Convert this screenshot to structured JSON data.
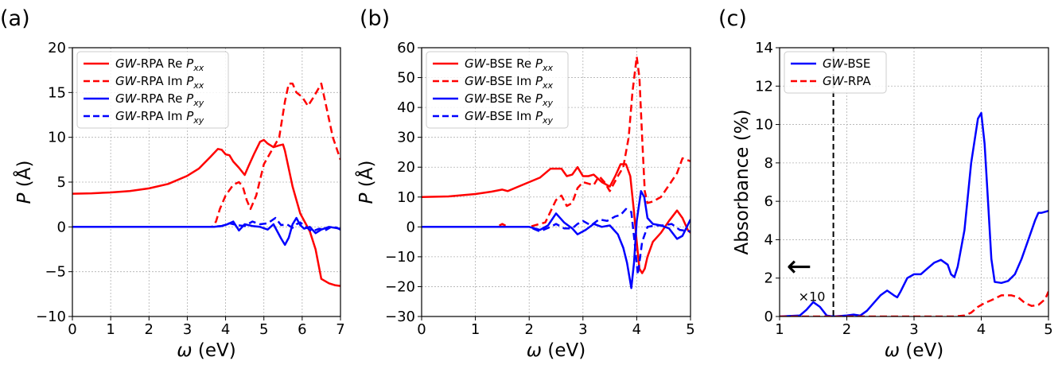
{
  "chart_data": [
    {
      "type": "line",
      "panel_label": "(a)",
      "xlabel": "ω (eV)",
      "ylabel": "P (Å)",
      "xlim": [
        0,
        7
      ],
      "ylim": [
        -10,
        20
      ],
      "xticks": [
        0,
        1,
        2,
        3,
        4,
        5,
        6,
        7
      ],
      "yticks": [
        -10,
        -5,
        0,
        5,
        10,
        15,
        20
      ],
      "grid": true,
      "legend_position": "top-left",
      "series": [
        {
          "name": "GW-RPA Re Pxx",
          "color": "#ff0000",
          "dash": "solid",
          "x": [
            0,
            0.5,
            1,
            1.5,
            2,
            2.5,
            3,
            3.3,
            3.6,
            3.8,
            3.9,
            4.0,
            4.1,
            4.2,
            4.35,
            4.5,
            4.6,
            4.75,
            4.9,
            5.0,
            5.1,
            5.25,
            5.4,
            5.5,
            5.55,
            5.65,
            5.75,
            5.85,
            5.95,
            6.1,
            6.2,
            6.35,
            6.5,
            6.7,
            6.85,
            7.0
          ],
          "y": [
            3.7,
            3.75,
            3.85,
            4.0,
            4.3,
            4.8,
            5.7,
            6.5,
            7.8,
            8.7,
            8.6,
            8.1,
            8.0,
            7.3,
            6.6,
            5.8,
            6.8,
            8.2,
            9.5,
            9.7,
            9.3,
            8.9,
            9.1,
            9.2,
            8.5,
            6.5,
            4.5,
            3.0,
            1.5,
            0.3,
            -0.5,
            -2.5,
            -5.8,
            -6.3,
            -6.5,
            -6.6
          ]
        },
        {
          "name": "GW-RPA Im Pxx",
          "color": "#ff0000",
          "dash": "dashed",
          "x": [
            0,
            3.0,
            3.65,
            3.75,
            3.85,
            4.0,
            4.2,
            4.35,
            4.45,
            4.55,
            4.65,
            4.8,
            5.0,
            5.2,
            5.4,
            5.55,
            5.65,
            5.75,
            5.85,
            6.0,
            6.15,
            6.3,
            6.5,
            6.65,
            6.8,
            7.0
          ],
          "y": [
            0,
            0,
            0,
            0.6,
            2.0,
            3.5,
            4.7,
            5.0,
            4.5,
            3.0,
            2.0,
            3.5,
            7.0,
            8.5,
            10.0,
            14.0,
            16.0,
            16.0,
            15.0,
            14.5,
            13.5,
            14.5,
            16.0,
            13.0,
            10.0,
            7.5
          ]
        },
        {
          "name": "GW-RPA Re Pxy",
          "color": "#0000ff",
          "dash": "solid",
          "x": [
            0,
            3.7,
            3.9,
            4.05,
            4.2,
            4.35,
            4.5,
            4.7,
            4.9,
            5.1,
            5.25,
            5.45,
            5.55,
            5.65,
            5.75,
            5.85,
            5.95,
            6.05,
            6.2,
            6.35,
            6.5,
            6.7,
            7.0
          ],
          "y": [
            0,
            0,
            0.1,
            0.3,
            0.6,
            -0.4,
            0.3,
            0.1,
            0,
            -0.3,
            0.3,
            -1.3,
            -2.0,
            -1.2,
            0.3,
            1.0,
            0.2,
            -0.2,
            0.0,
            -0.7,
            -0.3,
            0.0,
            -0.2
          ]
        },
        {
          "name": "GW-RPA Im Pxy",
          "color": "#0000ff",
          "dash": "dashed",
          "x": [
            0,
            3.6,
            3.9,
            4.1,
            4.3,
            4.5,
            4.7,
            4.9,
            5.1,
            5.3,
            5.45,
            5.6,
            5.75,
            5.85,
            5.95,
            6.1,
            6.25,
            6.45,
            6.6,
            6.8,
            7.0
          ],
          "y": [
            0,
            0,
            0.1,
            0.4,
            0.2,
            0.1,
            0.6,
            0.3,
            0.4,
            1.0,
            0.2,
            0.3,
            -0.1,
            0.3,
            0.5,
            0,
            -0.5,
            -0.2,
            -0.4,
            0.1,
            -0.3
          ]
        }
      ]
    },
    {
      "type": "line",
      "panel_label": "(b)",
      "xlabel": "ω (eV)",
      "ylabel": "P (Å)",
      "xlim": [
        0,
        5
      ],
      "ylim": [
        -30,
        60
      ],
      "xticks": [
        0,
        1,
        2,
        3,
        4,
        5
      ],
      "yticks": [
        -30,
        -20,
        -10,
        0,
        10,
        20,
        30,
        40,
        50,
        60
      ],
      "grid": true,
      "legend_position": "top-left",
      "series": [
        {
          "name": "GW-BSE Re Pxx",
          "color": "#ff0000",
          "dash": "solid",
          "x": [
            0,
            0.5,
            1.0,
            1.3,
            1.5,
            1.6,
            1.8,
            2.0,
            2.2,
            2.4,
            2.5,
            2.6,
            2.7,
            2.8,
            2.9,
            3.0,
            3.1,
            3.2,
            3.35,
            3.5,
            3.6,
            3.7,
            3.8,
            3.88,
            3.95,
            4.0,
            4.05,
            4.1,
            4.15,
            4.2,
            4.3,
            4.45,
            4.6,
            4.75,
            4.85,
            4.95,
            5.0
          ],
          "y": [
            10.0,
            10.2,
            11.0,
            11.8,
            12.5,
            12.0,
            13.5,
            15.0,
            16.5,
            19.5,
            19.5,
            19.5,
            17.0,
            17.5,
            20.0,
            17.0,
            17.0,
            17.5,
            15.0,
            13.5,
            17.0,
            21.0,
            21.0,
            17.0,
            5.0,
            -5.0,
            -14.0,
            -15.5,
            -14.0,
            -10.0,
            -5.0,
            -2.0,
            2.0,
            5.5,
            3.0,
            -1.0,
            -2.0
          ]
        },
        {
          "name": "GW-BSE Im Pxx",
          "color": "#ff0000",
          "dash": "dashed",
          "x": [
            0,
            1.4,
            1.5,
            1.6,
            2.0,
            2.3,
            2.5,
            2.6,
            2.7,
            2.8,
            2.9,
            3.0,
            3.2,
            3.3,
            3.4,
            3.5,
            3.65,
            3.75,
            3.85,
            3.92,
            4.0,
            4.05,
            4.1,
            4.15,
            4.2,
            4.3,
            4.45,
            4.6,
            4.75,
            4.85,
            5.0
          ],
          "y": [
            0,
            0,
            1.0,
            0,
            0,
            1.5,
            9.0,
            10.5,
            7.0,
            8.0,
            13.0,
            15.0,
            14.0,
            17.0,
            15.0,
            12.0,
            17.0,
            20.0,
            30.0,
            45.0,
            57.0,
            50.0,
            30.0,
            12.0,
            8.0,
            8.5,
            10.0,
            14.0,
            18.0,
            23.0,
            22.0
          ]
        },
        {
          "name": "GW-BSE Re Pxy",
          "color": "#0000ff",
          "dash": "solid",
          "x": [
            0,
            2.0,
            2.2,
            2.35,
            2.5,
            2.65,
            2.8,
            2.9,
            3.05,
            3.2,
            3.35,
            3.5,
            3.65,
            3.75,
            3.82,
            3.9,
            3.95,
            4.0,
            4.08,
            4.14,
            4.2,
            4.3,
            4.45,
            4.6,
            4.75,
            4.85,
            5.0
          ],
          "y": [
            0,
            0,
            -1.0,
            0.5,
            4.5,
            1.5,
            -0.5,
            -2.5,
            -1.0,
            1.0,
            0,
            0.5,
            -2.5,
            -7.0,
            -12.0,
            -20.5,
            -12.0,
            2.0,
            12.0,
            10.0,
            3.0,
            1.0,
            0.5,
            -0.5,
            -4.0,
            -3.0,
            2.5
          ]
        },
        {
          "name": "GW-BSE Im Pxy",
          "color": "#0000ff",
          "dash": "dashed",
          "x": [
            0,
            2.0,
            2.2,
            2.4,
            2.5,
            2.65,
            2.8,
            2.9,
            3.0,
            3.15,
            3.3,
            3.45,
            3.6,
            3.7,
            3.8,
            3.9,
            3.96,
            4.02,
            4.1,
            4.2,
            4.35,
            4.5,
            4.65,
            4.8,
            5.0
          ],
          "y": [
            0,
            0,
            -1.5,
            0,
            1.0,
            -0.5,
            -0.5,
            1.0,
            2.0,
            0.5,
            2.5,
            2.0,
            3.5,
            4.0,
            6.0,
            5.0,
            -5.0,
            -16.0,
            -5.0,
            0,
            0.5,
            0.5,
            1.0,
            -1.0,
            -1.5
          ]
        }
      ]
    },
    {
      "type": "line",
      "panel_label": "(c)",
      "xlabel": "ω (eV)",
      "ylabel": "Absorbance (%)",
      "xlim": [
        1,
        5
      ],
      "ylim": [
        0,
        14
      ],
      "xticks": [
        1,
        2,
        3,
        4,
        5
      ],
      "yticks": [
        0,
        2,
        4,
        6,
        8,
        10,
        12,
        14
      ],
      "grid": true,
      "legend_position": "top-left",
      "annotation": "×10",
      "annotation_arrow": "←",
      "vline_x": 1.8,
      "series": [
        {
          "name": "GW-BSE",
          "color": "#0000ff",
          "dash": "solid",
          "x": [
            1.0,
            1.3,
            1.4,
            1.5,
            1.6,
            1.7,
            1.8,
            2.0,
            2.1,
            2.2,
            2.3,
            2.4,
            2.5,
            2.6,
            2.7,
            2.75,
            2.8,
            2.9,
            3.0,
            3.1,
            3.2,
            3.3,
            3.4,
            3.5,
            3.55,
            3.6,
            3.65,
            3.75,
            3.85,
            3.95,
            4.0,
            4.05,
            4.1,
            4.15,
            4.2,
            4.3,
            4.4,
            4.5,
            4.6,
            4.7,
            4.8,
            4.85,
            4.9,
            5.0
          ],
          "y": [
            0,
            0.05,
            0.35,
            0.75,
            0.5,
            0.05,
            0,
            0.05,
            0.1,
            0.05,
            0.3,
            0.7,
            1.1,
            1.35,
            1.1,
            1.0,
            1.3,
            2.0,
            2.2,
            2.2,
            2.5,
            2.8,
            2.95,
            2.7,
            2.2,
            2.05,
            2.6,
            4.5,
            8.0,
            10.3,
            10.6,
            9.0,
            6.0,
            3.0,
            1.8,
            1.75,
            1.85,
            2.2,
            3.0,
            4.0,
            5.0,
            5.4,
            5.4,
            5.5
          ]
        },
        {
          "name": "GW-RPA",
          "color": "#ff0000",
          "dash": "dashed",
          "x": [
            1.0,
            3.6,
            3.75,
            3.85,
            3.95,
            4.05,
            4.15,
            4.3,
            4.45,
            4.55,
            4.65,
            4.75,
            4.85,
            4.95,
            5.0
          ],
          "y": [
            0,
            0,
            0.05,
            0.2,
            0.5,
            0.7,
            0.85,
            1.1,
            1.1,
            1.0,
            0.7,
            0.55,
            0.6,
            0.9,
            1.3
          ]
        }
      ]
    }
  ]
}
